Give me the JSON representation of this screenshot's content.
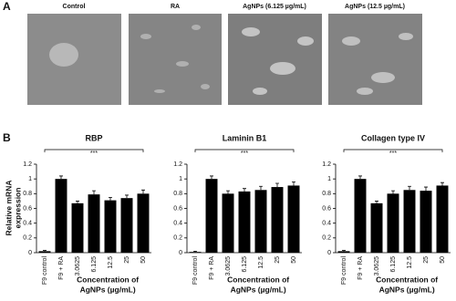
{
  "panel_a": {
    "label": "A",
    "images": [
      "Control",
      "RA",
      "AgNPs (6.125 µg/mL)",
      "AgNPs (12.5 µg/mL)"
    ]
  },
  "panel_b": {
    "label": "B"
  },
  "chart_data": [
    {
      "type": "bar",
      "title": "RBP",
      "ylabel": [
        "Relative mRNA",
        "expression"
      ],
      "xlabel": [
        "Concentration of",
        "AgNPs (µg/mL)"
      ],
      "categories": [
        "F9 control",
        "F9 + RA",
        "3.0625",
        "6.125",
        "12.5",
        "25",
        "50"
      ],
      "values": [
        0.02,
        1.0,
        0.67,
        0.79,
        0.71,
        0.74,
        0.8
      ],
      "errors": [
        0.01,
        0.04,
        0.03,
        0.05,
        0.04,
        0.04,
        0.05
      ],
      "color": "#000000",
      "ylim": [
        0,
        1.2
      ],
      "yticks": [
        0,
        0.2,
        0.4,
        0.6,
        0.8,
        1,
        1.2
      ],
      "annotation": "***"
    },
    {
      "type": "bar",
      "title": "Laminin B1",
      "xlabel": [
        "Concentration of",
        "AgNPs (µg/mL)"
      ],
      "categories": [
        "F9 control",
        "F9 + RA",
        "3.0625",
        "6.125",
        "12.5",
        "25",
        "50"
      ],
      "values": [
        0.01,
        1.0,
        0.8,
        0.83,
        0.85,
        0.89,
        0.91
      ],
      "errors": [
        0.01,
        0.04,
        0.04,
        0.04,
        0.05,
        0.05,
        0.05
      ],
      "color": "#000000",
      "ylim": [
        0,
        1.2
      ],
      "yticks": [
        0,
        0.2,
        0.4,
        0.6,
        0.8,
        1,
        1.2
      ],
      "annotation": "***"
    },
    {
      "type": "bar",
      "title": "Collagen type IV",
      "xlabel": [
        "Concentration of",
        "AgNPs (µg/mL)"
      ],
      "categories": [
        "F9 control",
        "F9 + RA",
        "3.0625",
        "6.125",
        "12.5",
        "25",
        "50"
      ],
      "values": [
        0.02,
        1.0,
        0.67,
        0.8,
        0.85,
        0.84,
        0.91
      ],
      "errors": [
        0.01,
        0.04,
        0.03,
        0.04,
        0.05,
        0.05,
        0.04
      ],
      "color": "#000000",
      "ylim": [
        0,
        1.2
      ],
      "yticks": [
        0,
        0.2,
        0.4,
        0.6,
        0.8,
        1,
        1.2
      ],
      "annotation": "***"
    }
  ]
}
